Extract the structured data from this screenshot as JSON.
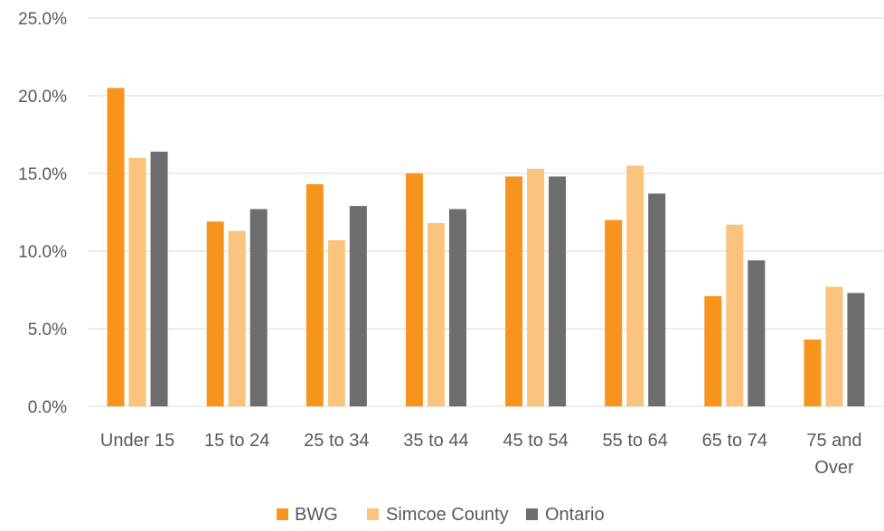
{
  "chart_data": {
    "type": "bar",
    "title": "",
    "xlabel": "",
    "ylabel": "",
    "ylim": [
      0,
      25
    ],
    "y_tick_labels": [
      "0.0%",
      "5.0%",
      "10.0%",
      "15.0%",
      "20.0%",
      "25.0%"
    ],
    "y_ticks": [
      0,
      5,
      10,
      15,
      20,
      25
    ],
    "grid": true,
    "legend_position": "bottom",
    "categories": [
      [
        "Under 15"
      ],
      [
        "15 to 24"
      ],
      [
        "25 to 34"
      ],
      [
        "35 to 44"
      ],
      [
        "45 to 54"
      ],
      [
        "55 to 64"
      ],
      [
        "65 to 74"
      ],
      [
        "75 and",
        "Over"
      ]
    ],
    "series": [
      {
        "name": "BWG",
        "color": "#F7941D",
        "values": [
          20.5,
          11.9,
          14.3,
          15.0,
          14.8,
          12.0,
          7.1,
          4.3
        ]
      },
      {
        "name": "Simcoe County",
        "color": "#FAC47E",
        "values": [
          16.0,
          11.3,
          10.7,
          11.8,
          15.3,
          15.5,
          11.7,
          7.7
        ]
      },
      {
        "name": "Ontario",
        "color": "#6D6D6D",
        "values": [
          16.4,
          12.7,
          12.9,
          12.7,
          14.8,
          13.7,
          9.4,
          7.3
        ]
      }
    ],
    "colors": {
      "gridline": "#D9D9D9",
      "text": "#595959"
    }
  }
}
